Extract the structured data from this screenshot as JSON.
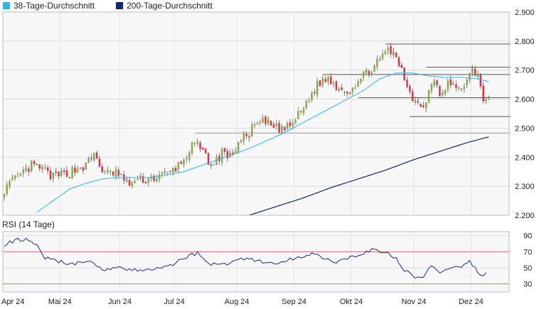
{
  "chart_data": [
    {
      "type": "candlestick",
      "legend": [
        {
          "label": "38-Tage-Durchschnitt",
          "color": "#2fb4ea"
        },
        {
          "label": "200-Tage-Durchschnitt",
          "color": "#12286b"
        }
      ],
      "y_ticks": [
        "2.900",
        "2.800",
        "2.700",
        "2.600",
        "2.500",
        "2.400",
        "2.300",
        "2.200"
      ],
      "ylim": [
        2.2,
        2.9
      ],
      "x_ticks": [
        "Apr 24",
        "Mai 24",
        "Jun 24",
        "Jul 24",
        "Aug 24",
        "Sep 24",
        "Okt 24",
        "Nov 24",
        "Dez 24"
      ],
      "x_tick_positions": [
        0,
        21,
        43,
        63,
        86,
        107,
        128,
        151,
        172
      ],
      "num_days": 186,
      "colors": {
        "up": "#88a94a",
        "down": "#d7344c",
        "ma38": "#2fb4ea",
        "ma200": "#12286b",
        "levels": "#555555",
        "level_light": "#b5b5b5"
      },
      "close_keypoints": [
        [
          0,
          2.29
        ],
        [
          5,
          2.33
        ],
        [
          10,
          2.37
        ],
        [
          14,
          2.36
        ],
        [
          18,
          2.33
        ],
        [
          24,
          2.35
        ],
        [
          30,
          2.37
        ],
        [
          33,
          2.41
        ],
        [
          37,
          2.34
        ],
        [
          41,
          2.35
        ],
        [
          45,
          2.31
        ],
        [
          50,
          2.32
        ],
        [
          55,
          2.33
        ],
        [
          60,
          2.34
        ],
        [
          65,
          2.38
        ],
        [
          70,
          2.45
        ],
        [
          74,
          2.4
        ],
        [
          77,
          2.37
        ],
        [
          80,
          2.42
        ],
        [
          83,
          2.4
        ],
        [
          86,
          2.45
        ],
        [
          89,
          2.47
        ],
        [
          92,
          2.51
        ],
        [
          96,
          2.52
        ],
        [
          100,
          2.5
        ],
        [
          104,
          2.5
        ],
        [
          107,
          2.53
        ],
        [
          110,
          2.57
        ],
        [
          113,
          2.62
        ],
        [
          116,
          2.66
        ],
        [
          119,
          2.67
        ],
        [
          123,
          2.64
        ],
        [
          126,
          2.63
        ],
        [
          130,
          2.66
        ],
        [
          134,
          2.7
        ],
        [
          139,
          2.74
        ],
        [
          141,
          2.78
        ],
        [
          143,
          2.75
        ],
        [
          145,
          2.72
        ],
        [
          147,
          2.67
        ],
        [
          150,
          2.61
        ],
        [
          153,
          2.57
        ],
        [
          155,
          2.6
        ],
        [
          158,
          2.68
        ],
        [
          160,
          2.62
        ],
        [
          163,
          2.66
        ],
        [
          167,
          2.63
        ],
        [
          170,
          2.66
        ],
        [
          172,
          2.72
        ],
        [
          174,
          2.67
        ],
        [
          176,
          2.6
        ],
        [
          177,
          2.59
        ],
        [
          178,
          2.61
        ]
      ],
      "ma38_keypoints": [
        [
          12,
          2.21
        ],
        [
          18,
          2.25
        ],
        [
          24,
          2.29
        ],
        [
          30,
          2.31
        ],
        [
          36,
          2.325
        ],
        [
          42,
          2.33
        ],
        [
          48,
          2.33
        ],
        [
          54,
          2.33
        ],
        [
          60,
          2.34
        ],
        [
          66,
          2.35
        ],
        [
          72,
          2.37
        ],
        [
          78,
          2.39
        ],
        [
          84,
          2.41
        ],
        [
          90,
          2.43
        ],
        [
          96,
          2.455
        ],
        [
          102,
          2.48
        ],
        [
          108,
          2.51
        ],
        [
          114,
          2.54
        ],
        [
          120,
          2.57
        ],
        [
          126,
          2.6
        ],
        [
          132,
          2.63
        ],
        [
          138,
          2.67
        ],
        [
          144,
          2.69
        ],
        [
          150,
          2.69
        ],
        [
          156,
          2.68
        ],
        [
          162,
          2.675
        ],
        [
          168,
          2.675
        ],
        [
          174,
          2.67
        ],
        [
          178,
          2.66
        ]
      ],
      "ma200_keypoints": [
        [
          90,
          2.2
        ],
        [
          100,
          2.23
        ],
        [
          110,
          2.26
        ],
        [
          120,
          2.295
        ],
        [
          130,
          2.325
        ],
        [
          140,
          2.355
        ],
        [
          150,
          2.39
        ],
        [
          160,
          2.42
        ],
        [
          170,
          2.45
        ],
        [
          178,
          2.47
        ]
      ],
      "levels": [
        {
          "value": 2.79,
          "from": 140,
          "to": 186
        },
        {
          "value": 2.71,
          "from": 155,
          "to": 186
        },
        {
          "value": 2.685,
          "from": 117,
          "to": 186
        },
        {
          "value": 2.605,
          "from": 130,
          "to": 186
        },
        {
          "value": 2.54,
          "from": 149,
          "to": 186
        },
        {
          "value": 2.483,
          "from": 70,
          "to": 186,
          "style": "light"
        }
      ],
      "grid": true
    },
    {
      "type": "line",
      "title": "RSI (14 Tage)",
      "y_ticks": [
        "90",
        "70",
        "50",
        "30"
      ],
      "ylim": [
        20,
        95
      ],
      "reference_lines": [
        {
          "value": 70,
          "color": "#e6707c"
        },
        {
          "value": 30,
          "color": "#7fb04f"
        }
      ],
      "color": "#1a2c80",
      "rsi_keypoints": [
        [
          0,
          78
        ],
        [
          4,
          84
        ],
        [
          8,
          86
        ],
        [
          12,
          80
        ],
        [
          15,
          62
        ],
        [
          20,
          58
        ],
        [
          25,
          55
        ],
        [
          32,
          56
        ],
        [
          37,
          48
        ],
        [
          42,
          51
        ],
        [
          47,
          47
        ],
        [
          52,
          46
        ],
        [
          57,
          50
        ],
        [
          62,
          54
        ],
        [
          66,
          63
        ],
        [
          71,
          68
        ],
        [
          75,
          56
        ],
        [
          80,
          53
        ],
        [
          85,
          60
        ],
        [
          90,
          62
        ],
        [
          95,
          57
        ],
        [
          100,
          55
        ],
        [
          105,
          60
        ],
        [
          110,
          65
        ],
        [
          114,
          68
        ],
        [
          118,
          62
        ],
        [
          122,
          56
        ],
        [
          126,
          60
        ],
        [
          131,
          68
        ],
        [
          135,
          72
        ],
        [
          138,
          71
        ],
        [
          141,
          67
        ],
        [
          144,
          61
        ],
        [
          146,
          50
        ],
        [
          149,
          42
        ],
        [
          152,
          38
        ],
        [
          154,
          40
        ],
        [
          157,
          52
        ],
        [
          160,
          44
        ],
        [
          164,
          49
        ],
        [
          168,
          50
        ],
        [
          171,
          57
        ],
        [
          173,
          52
        ],
        [
          175,
          40
        ],
        [
          177,
          42
        ]
      ]
    }
  ]
}
